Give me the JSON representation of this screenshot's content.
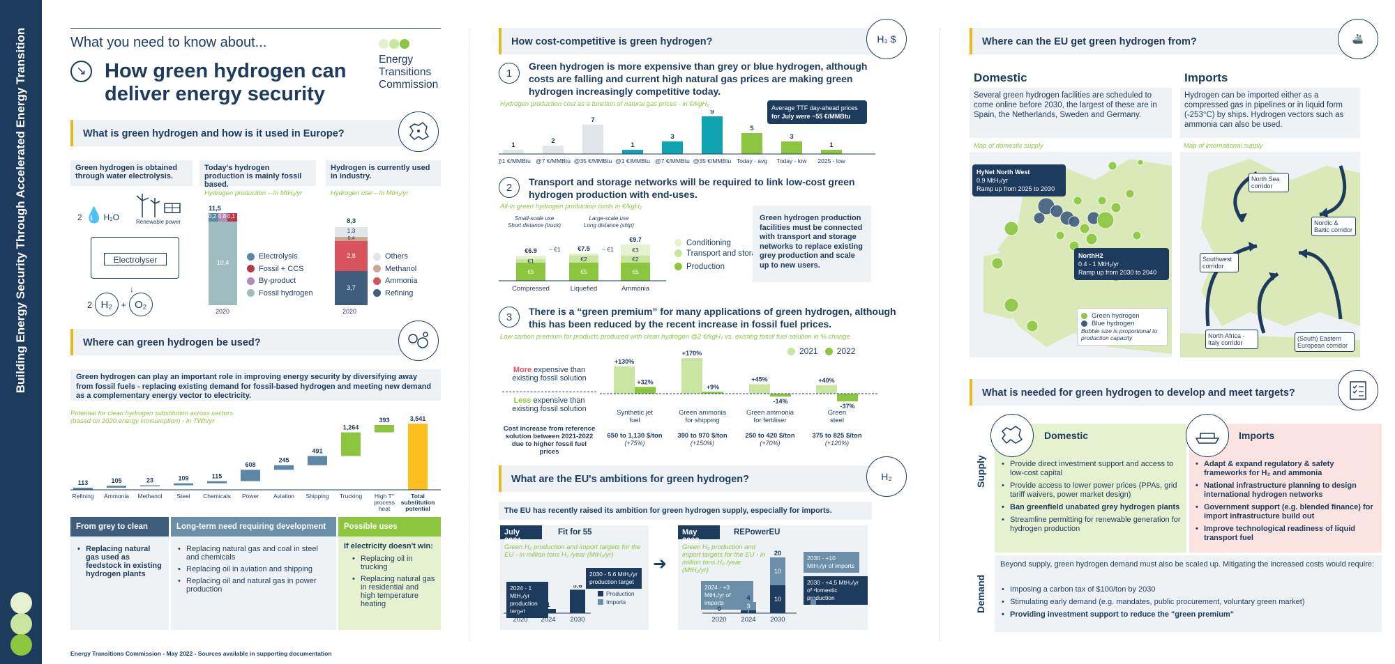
{
  "sidebar_title": "Building Energy Security Through Accelerated Energy Transition",
  "colors": {
    "navy": "#1d3b5c",
    "green": "#8cc63f",
    "light_green": "#c8e6a0",
    "yellow": "#fcbf1e",
    "teal": "#0fa3b1",
    "accent": "#e8ba1d"
  },
  "header": {
    "kicker": "What you need to know about...",
    "title_line1": "How green hydrogen can",
    "title_line2": "deliver energy security",
    "org_line1": "Energy",
    "org_line2": "Transitions",
    "org_line3": "Commission"
  },
  "s1": {
    "title": "What is green hydrogen and how is it used in Europe?",
    "c1": "Green hydrogen is obtained through water electrolysis.",
    "c2": "Today's hydrogen production is mainly fossil based.",
    "c3": "Hydrogen is currently used in industry.",
    "c2_sub": "Hydrogen production – in MtH₂/yr",
    "c3_sub": "Hydrogen use – in MtH₂/yr",
    "h2o": "H₂O",
    "renewable": "Renewable power",
    "electrolyser": "Electrolyser",
    "h2": "H₂",
    "o2": "O₂",
    "two_a": "2",
    "two_b": "2",
    "plus": "+",
    "prod_total": "11,5",
    "prod_fossil": "10,4",
    "prod_a": "0,2",
    "prod_b": "0,8",
    "prod_c": "0,1",
    "prod_year": "2020",
    "prod_legend": [
      "Electrolysis",
      "Fossil + CCS",
      "By-product",
      "Fossil hydrogen"
    ],
    "use_total": "8,3",
    "use_others": "1,3",
    "use_meth": "0,4",
    "use_amm": "2,8",
    "use_ref": "3,7",
    "use_year": "2020",
    "use_legend": [
      "Others",
      "Methanol",
      "Ammonia",
      "Refining"
    ]
  },
  "s2": {
    "title": "Where can green hydrogen be used?",
    "intro": "Green hydrogen can play an important role in improving energy security by diversifying away from fossil fuels - replacing existing demand for fossil-based hydrogen and meeting new demand as a complementary energy vector to electricity.",
    "chart_label1": "Potential for clean hydrogen substitution across sectors",
    "chart_label2": "(based on 2020 energy consumption) - in TWh/yr",
    "cards": [
      {
        "title": "From grey to clean",
        "items": [
          "Replacing natural gas used as feedstock in existing hydrogen plants"
        ]
      },
      {
        "title": "Long-term need  requiring development",
        "items": [
          "Replacing natural gas and coal in steel and chemicals",
          "Replacing oil in aviation and shipping",
          "Replacing oil and natural gas in power production"
        ]
      },
      {
        "title": "Possible uses",
        "sub": "If electricity doesn't win:",
        "items": [
          "Replacing oil in trucking",
          "Replacing natural gas in residential and high temperature heating"
        ]
      }
    ]
  },
  "chart_data": [
    {
      "type": "bar",
      "title": "Potential for clean hydrogen substitution across sectors",
      "ylabel": "TWh/yr",
      "categories": [
        "Refining",
        "Ammonia",
        "Methanol",
        "Steel",
        "Chemicals",
        "Power",
        "Aviation",
        "Shipping",
        "Trucking",
        "High T° process heat",
        "Total substitution potential"
      ],
      "values": [
        113,
        105,
        23,
        109,
        115,
        608,
        245,
        491,
        1264,
        393,
        3541
      ]
    },
    {
      "type": "bar",
      "title": "Hydrogen production cost as a function of natural gas prices - in €/kgH₂",
      "categories": [
        "@1 €/MMBtu",
        "@7 €/MMBtu",
        "@35 €/MMBtu",
        "@1 €/MMBtu",
        "@7 €/MMBtu",
        "@35 €/MMBtu",
        "Today - avg",
        "Today - low",
        "2025 - low"
      ],
      "values": [
        1,
        2,
        7,
        1,
        3,
        9,
        5,
        3,
        1
      ]
    },
    {
      "type": "bar",
      "title": "All-in green hydrogen production costs in €/kgH₂",
      "categories": [
        "Compressed",
        "Liquefied",
        "Ammonia"
      ],
      "series": [
        {
          "name": "Production",
          "values": [
            5,
            5,
            5
          ]
        },
        {
          "name": "Transport and storage",
          "values": [
            1,
            2,
            2
          ]
        },
        {
          "name": "Conditioning",
          "values": [
            0.9,
            0.5,
            3
          ]
        }
      ],
      "totals": [
        6.9,
        7.5,
        9.7
      ]
    },
    {
      "type": "bar",
      "title": "Low carbon premium for products produced with clean hydrogen @2 €/kgH₂ vs. existing fossil fuel solution in % change",
      "categories": [
        "Synthetic jet fuel",
        "Green ammonia for shipping",
        "Green ammonia for fertiliser",
        "Green steel"
      ],
      "series": [
        {
          "name": "2021",
          "values": [
            130,
            170,
            45,
            40
          ]
        },
        {
          "name": "2022",
          "values": [
            32,
            9,
            -14,
            -37
          ]
        }
      ]
    },
    {
      "type": "bar",
      "title": "Fit for 55",
      "categories": [
        "2020",
        "2024",
        "2030"
      ],
      "values": [
        0,
        1,
        5.6
      ]
    },
    {
      "type": "bar",
      "title": "REPowerEU",
      "categories": [
        "2020",
        "2024",
        "2030"
      ],
      "series": [
        {
          "name": "Production",
          "values": [
            0,
            1,
            10
          ]
        },
        {
          "name": "Imports",
          "values": [
            0,
            3,
            10
          ]
        }
      ],
      "totals": [
        0,
        4,
        20
      ]
    }
  ],
  "s3": {
    "title": "How cost-competitive is green hydrogen?",
    "step1": "Green hydrogen is more expensive than grey or blue hydrogen, although costs are falling and current high natural gas prices are making green hydrogen increasingly competitive today.",
    "step1_sub": "Hydrogen production cost as a function of natural gas prices - in €/kgH₂",
    "callout_a": "Average TTF day-ahead prices",
    "callout_b": "for July were ~55 €/MMBtu",
    "step2": "Transport and storage networks will be required to link low-cost green hydrogen production with end-uses.",
    "step2_sub": "All-in green hydrogen production costs in €/kgH₂",
    "small_scale": "Small-scale use",
    "small_scale2": "Short distance (truck)",
    "large_scale": "Large-scale use",
    "large_scale2": "Long distance (ship)",
    "totals": [
      "€6.9",
      "€7.5",
      "€9.7"
    ],
    "seg_labels": [
      "€1",
      "€2",
      "€2",
      "€3",
      "€5",
      "€5",
      "€5"
    ],
    "approx": [
      "~ €1",
      "~ €1"
    ],
    "legend2": [
      "Conditioning",
      "Transport and storage",
      "Production"
    ],
    "box2": "Green hydrogen production facilities must be connected with transport and storage networks to replace existing grey production and scale up to new users.",
    "step3": "There is a “green premium” for many applications of green hydrogen, although this has been reduced by the recent increase in fossil fuel prices.",
    "step3_sub": "Low carbon premium for products produced with clean hydrogen @2 €/kgH₂ vs. existing fossil fuel solution in % change",
    "more": "More",
    "more_rest": " expensive than existing fossil solution",
    "less": "Less",
    "less_rest": " expensive than existing fossil solution",
    "cost_increase": "Cost increase from reference solution between 2021-2022 due to higher fossil fuel prices",
    "premium_labels": [
      "+130%",
      "+32%",
      "+170%",
      "+9%",
      "+45%",
      "-14%",
      "+40%",
      "-37%"
    ],
    "products": [
      "Synthetic jet fuel",
      "Green ammonia for shipping",
      "Green ammonia for fertiliser",
      "Green steel"
    ],
    "prices": [
      "650 to 1,130 $/ton",
      "390 to 970 $/ton",
      "250 to 420 $/ton",
      "375 to 825 $/ton"
    ],
    "pct": [
      "(+75%)",
      "(+150%)",
      "(+70%)",
      "(+120%)"
    ],
    "y2021": "2021",
    "y2022": "2022"
  },
  "s4": {
    "title": "What are the EU's ambitions for green hydrogen?",
    "intro": "The EU has recently raised its ambition for green hydrogen supply, especially for imports.",
    "a_date": "July 2021",
    "a_name": "Fit for 55",
    "a_sub": "Green H₂ production and import targets for the EU - in million tons H₂ /year (MtH₂/yr)",
    "a_callout1": "2024 - 1 MtH₂/yr production target",
    "a_callout2": "2030 - 5.6 MtH₂/yr production target",
    "a_vals": [
      "0",
      "1",
      "5.6"
    ],
    "years": [
      "2020",
      "2024",
      "2030"
    ],
    "b_date": "May 2022",
    "b_name": "REPowerEU",
    "b_sub": "Green H₂ production and import targets for the EU - in million tons H₂ /year (MtH₂/yr)",
    "b_callout1": "2024 - +3 MtH₂/yr of imports",
    "b_callout2": "2030 - +10 MtH₂/yr of imports",
    "b_callout3": "2030 - +4.5 MtH₂/yr of domestic production",
    "b_vals": [
      "0",
      "4",
      "20"
    ],
    "b_segs": [
      "1",
      "3",
      "10",
      "10"
    ],
    "legend": [
      "Production",
      "Imports"
    ]
  },
  "s5": {
    "title": "Where can the EU get green hydrogen from?",
    "dom_title": "Domestic",
    "dom_text": "Several green hydrogen facilities are scheduled to come online before 2030, the largest of these are in Spain, the Netherlands, Sweden and Germany.",
    "dom_map": "Map of domestic supply",
    "imp_title": "Imports",
    "imp_text": "Hydrogen can be imported either as a compressed gas in pipelines or in liquid form (-253°C) by ships. Hydrogen vectors such as ammonia can also be used.",
    "imp_map": "Map of international supply",
    "hynet_a": "HyNet North West",
    "hynet_b": "0.9 MtH₂/yr",
    "hynet_c": "Ramp up from 2025 to 2030",
    "northh2_a": "NorthH2",
    "northh2_b": "0.4 - 1 MtH₂/yr",
    "northh2_c": "Ramp up from 2030 to 2040",
    "leg_green": "Green hydrogen",
    "leg_blue": "Blue hydrogen",
    "leg_note": "Bubble size is proportional to production capacity",
    "corridors": [
      "North Sea corridor",
      "Nordic & Baltic corridor",
      "Southwest corridor",
      "North Africa - Italy corridor",
      "(South) Eastern European corridor"
    ]
  },
  "s6": {
    "title": "What is needed for green hydrogen to develop and meet targets?",
    "dom": "Domestic",
    "imp": "Imports",
    "supply": "Supply",
    "demand": "Demand",
    "dom_items": [
      "Provide direct investment support and access to low-cost capital",
      "Provide access to lower power prices (PPAs, grid tariff waivers, power market design)",
      "Ban greenfield unabated grey hydrogen plants",
      "Streamline permitting for renewable generation for hydrogen production"
    ],
    "imp_items": [
      "Adapt & expand regulatory & safety frameworks for H₂ and ammonia",
      "National infrastructure planning to design international hydrogen networks",
      "Government support (e.g. blended finance) for import infrastructure build out",
      "Improve technological readiness of liquid transport fuel"
    ],
    "demand_intro": "Beyond supply, green hydrogen demand must also be scaled up. Mitigating the increased costs would require:",
    "demand_items": [
      "Imposing a carbon tax of $100/ton by 2030",
      "Stimulating early demand (e.g. mandates, public procurement, voluntary green market)",
      "Providing investment support to reduce the \"green premium\""
    ]
  },
  "footer": "Energy Transitions Commission - May 2022 - Sources available in supporting documentation"
}
